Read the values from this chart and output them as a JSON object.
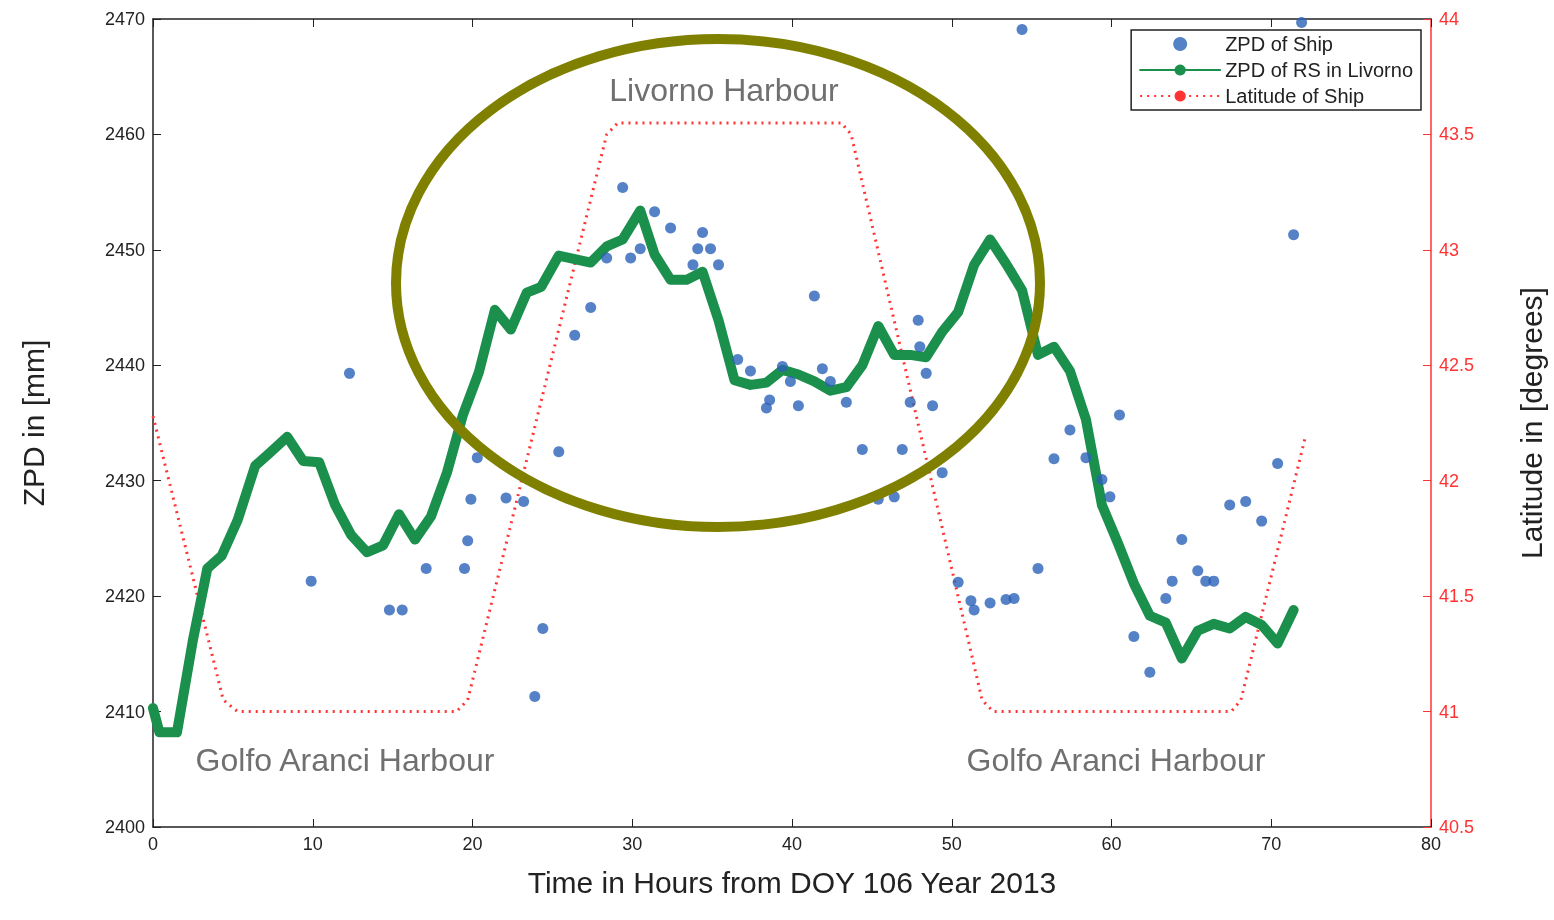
{
  "chart_data": {
    "type": "scatter",
    "xlabel": "Time in Hours from DOY 106 Year 2013",
    "ylabel": "ZPD in [mm]",
    "y2label": "Latitude in [degrees]",
    "xlim": [
      0,
      80
    ],
    "xticks": [
      0,
      10,
      20,
      30,
      40,
      50,
      60,
      70,
      80
    ],
    "ylim": [
      2400,
      2470
    ],
    "yticks": [
      2400,
      2410,
      2420,
      2430,
      2440,
      2450,
      2460,
      2470
    ],
    "y2lim": [
      40.5,
      44
    ],
    "y2ticks": [
      40.5,
      41,
      41.5,
      42,
      42.5,
      43,
      43.5,
      44
    ],
    "grid": false,
    "legend": "top right",
    "annotations": [
      "Livorno Harbour",
      "Golfo Aranci Harbour",
      "Golfo Aranci Harbour"
    ],
    "series": [
      {
        "name": "ZPD of Ship",
        "marker": "circle",
        "color": "#2a62b8",
        "x": [
          9.9,
          12.3,
          14.8,
          15.6,
          17.1,
          19.5,
          19.7,
          19.9,
          20.3,
          22.1,
          23.2,
          23.9,
          24.4,
          25.4,
          26.4,
          27.4,
          28.4,
          29.4,
          29.9,
          30.5,
          31.4,
          32.4,
          33.8,
          34.1,
          34.4,
          34.9,
          35.4,
          36.6,
          37.4,
          38.4,
          38.6,
          39.4,
          39.9,
          40.4,
          41.4,
          41.9,
          42.4,
          43.4,
          44.4,
          45.4,
          46.4,
          46.9,
          47.4,
          47.9,
          48.0,
          48.4,
          48.8,
          49.4,
          50.4,
          51.2,
          51.4,
          52.4,
          53.4,
          53.9,
          54.4,
          55.4,
          56.4,
          57.4,
          58.4,
          59.4,
          59.9,
          60.5,
          61.4,
          62.4,
          63.4,
          63.8,
          64.4,
          65.4,
          65.9,
          66.4,
          67.4,
          68.4,
          69.4,
          70.4,
          71.4,
          71.9
        ],
        "values": [
          2421.3,
          2439.3,
          2418.8,
          2418.8,
          2422.4,
          2422.4,
          2424.8,
          2428.4,
          2432.0,
          2428.5,
          2428.2,
          2411.3,
          2417.2,
          2432.5,
          2442.6,
          2445.0,
          2449.3,
          2455.4,
          2449.3,
          2450.1,
          2453.3,
          2451.9,
          2448.7,
          2450.1,
          2451.5,
          2450.1,
          2448.7,
          2440.5,
          2439.5,
          2436.3,
          2437.0,
          2439.9,
          2438.6,
          2436.5,
          2446.0,
          2439.7,
          2438.6,
          2436.8,
          2432.7,
          2428.4,
          2428.6,
          2432.7,
          2436.8,
          2443.9,
          2441.6,
          2439.3,
          2436.5,
          2430.7,
          2421.2,
          2419.6,
          2418.8,
          2419.4,
          2419.7,
          2419.8,
          2469.1,
          2422.4,
          2431.9,
          2434.4,
          2432.0,
          2430.1,
          2428.6,
          2435.7,
          2416.5,
          2413.4,
          2419.8,
          2421.3,
          2424.9,
          2422.2,
          2421.3,
          2421.3,
          2427.9,
          2428.2,
          2426.5,
          2431.5,
          2451.3,
          2469.7
        ]
      },
      {
        "name": "ZPD of RS in Livorno",
        "type": "line",
        "marker": "none",
        "line_style": "solid",
        "color": "#1b8f4c",
        "x": [
          0,
          0.4,
          1.5,
          2.5,
          3.4,
          4.3,
          5.3,
          6.4,
          7.3,
          8.4,
          9.4,
          10.4,
          11.4,
          12.4,
          13.4,
          14.4,
          15.4,
          16.4,
          17.4,
          18.4,
          19.4,
          20.4,
          21.4,
          22.4,
          23.4,
          24.3,
          25.4,
          26.4,
          27.4,
          28.4,
          29.4,
          30.5,
          31.4,
          32.4,
          33.4,
          34.4,
          35.4,
          36.4,
          37.4,
          38.4,
          39.4,
          40.4,
          41.4,
          42.4,
          43.4,
          44.4,
          45.4,
          46.4,
          47.4,
          48.4,
          49.4,
          50.4,
          51.4,
          52.4,
          53.4,
          54.4,
          55.4,
          56.4,
          57.4,
          58.4,
          59.4,
          60.4,
          61.4,
          62.4,
          63.4,
          64.4,
          65.4,
          66.4,
          67.4,
          68.4,
          69.4,
          70.4,
          71.4
        ],
        "values": [
          2410.3,
          2408.2,
          2408.2,
          2416.2,
          2422.4,
          2423.5,
          2426.6,
          2431.3,
          2432.4,
          2433.8,
          2431.7,
          2431.6,
          2427.9,
          2425.3,
          2423.8,
          2424.4,
          2427.1,
          2424.9,
          2426.9,
          2430.7,
          2435.7,
          2439.4,
          2444.8,
          2443.1,
          2446.3,
          2446.8,
          2449.5,
          2449.2,
          2448.9,
          2450.3,
          2450.9,
          2453.4,
          2449.6,
          2447.4,
          2447.4,
          2448.1,
          2443.9,
          2438.7,
          2438.3,
          2438.5,
          2439.6,
          2439.2,
          2438.6,
          2437.8,
          2438.1,
          2440.0,
          2443.4,
          2440.9,
          2440.9,
          2440.7,
          2442.9,
          2444.6,
          2448.7,
          2450.9,
          2448.8,
          2446.5,
          2440.9,
          2441.6,
          2439.5,
          2435.3,
          2427.9,
          2424.6,
          2421.1,
          2418.3,
          2417.7,
          2414.6,
          2417.0,
          2417.6,
          2417.2,
          2418.2,
          2417.5,
          2415.9,
          2418.8
        ]
      },
      {
        "name": "Latitude of Ship",
        "type": "line",
        "axis": "y2",
        "marker": "none",
        "line_style": "dotted",
        "color": "#ff3333",
        "x": [
          0,
          4.4,
          5.3,
          19.0,
          19.7,
          28.4,
          29.1,
          43.1,
          43.7,
          51.9,
          52.6,
          67.5,
          68.1,
          72.1
        ],
        "values": [
          42.28,
          41.05,
          41.0,
          41.0,
          41.05,
          43.5,
          43.55,
          43.55,
          43.5,
          41.05,
          41.0,
          41.0,
          41.05,
          42.18
        ]
      }
    ]
  }
}
